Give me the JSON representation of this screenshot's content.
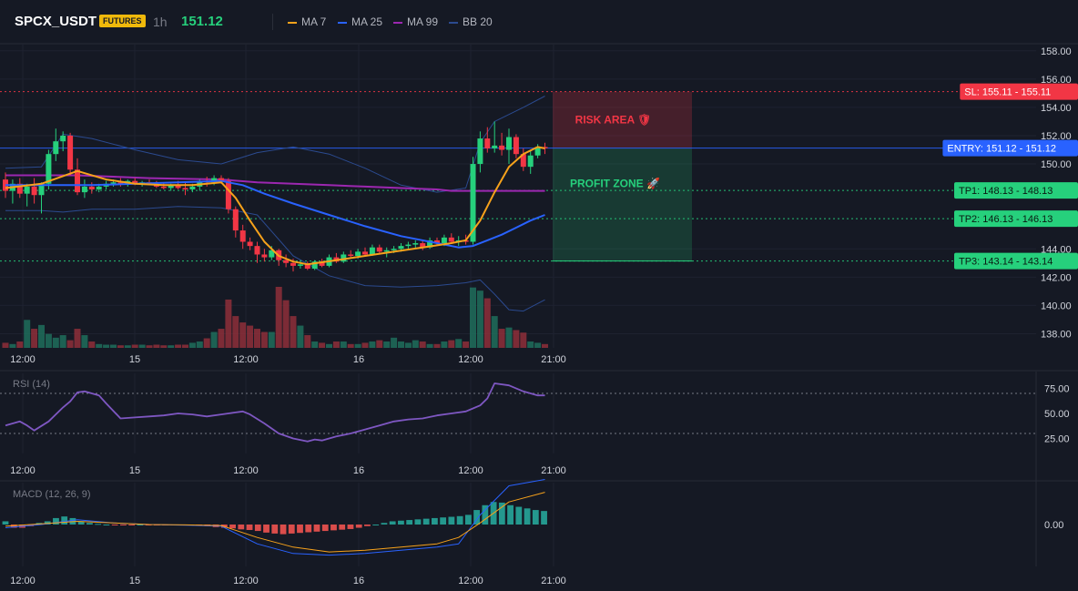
{
  "header": {
    "symbol": "SPCX_USDT",
    "badge": "FUTURES",
    "timeframe": "1h",
    "last_price": "151.12",
    "legend": [
      {
        "label": "MA 7",
        "color": "#f7a21b"
      },
      {
        "label": "MA 25",
        "color": "#2962ff"
      },
      {
        "label": "MA 99",
        "color": "#9c27b0"
      },
      {
        "label": "BB 20",
        "color": "#2b4a8f"
      }
    ]
  },
  "colors": {
    "up": "#26d07c",
    "down": "#f23645",
    "background": "#151924",
    "grid": "#1e2230"
  },
  "zones": {
    "risk_label": "RISK AREA 🛡",
    "profit_label": "PROFIT ZONE 🚀"
  },
  "chart_data": [
    {
      "type": "candlestick",
      "title": "",
      "x_ticks": [
        "12:00",
        "15",
        "12:00",
        "16",
        "12:00",
        "21:00"
      ],
      "y_ticks": [
        "138.00",
        "140.00",
        "142.00",
        "144.00",
        "150.00",
        "152.00",
        "154.00",
        "156.00",
        "158.00"
      ],
      "ylim": [
        137,
        158.5
      ],
      "candles": [
        {
          "o": 148.9,
          "h": 149.4,
          "l": 147.6,
          "c": 148.1
        },
        {
          "o": 148.1,
          "h": 148.9,
          "l": 147.2,
          "c": 148.6
        },
        {
          "o": 148.6,
          "h": 149.0,
          "l": 147.6,
          "c": 147.9
        },
        {
          "o": 147.9,
          "h": 148.6,
          "l": 147.0,
          "c": 148.4
        },
        {
          "o": 148.4,
          "h": 149.0,
          "l": 147.2,
          "c": 147.8
        },
        {
          "o": 147.8,
          "h": 148.7,
          "l": 146.5,
          "c": 148.6
        },
        {
          "o": 148.6,
          "h": 151.0,
          "l": 148.2,
          "c": 150.7
        },
        {
          "o": 150.7,
          "h": 152.5,
          "l": 150.2,
          "c": 151.6
        },
        {
          "o": 151.6,
          "h": 152.3,
          "l": 150.9,
          "c": 152.0
        },
        {
          "o": 152.0,
          "h": 152.2,
          "l": 149.2,
          "c": 149.6
        },
        {
          "o": 149.6,
          "h": 150.4,
          "l": 147.8,
          "c": 148.0
        },
        {
          "o": 148.0,
          "h": 148.9,
          "l": 147.6,
          "c": 148.4
        },
        {
          "o": 148.4,
          "h": 148.7,
          "l": 147.9,
          "c": 148.2
        },
        {
          "o": 148.2,
          "h": 148.6,
          "l": 148.0,
          "c": 148.4
        },
        {
          "o": 148.4,
          "h": 148.8,
          "l": 148.2,
          "c": 148.6
        },
        {
          "o": 148.6,
          "h": 148.9,
          "l": 148.4,
          "c": 148.7
        },
        {
          "o": 148.7,
          "h": 149.0,
          "l": 148.4,
          "c": 148.6
        },
        {
          "o": 148.6,
          "h": 148.9,
          "l": 148.4,
          "c": 148.8
        },
        {
          "o": 148.8,
          "h": 149.0,
          "l": 148.5,
          "c": 148.6
        },
        {
          "o": 148.6,
          "h": 148.8,
          "l": 148.4,
          "c": 148.7
        },
        {
          "o": 148.7,
          "h": 148.9,
          "l": 148.5,
          "c": 148.6
        },
        {
          "o": 148.6,
          "h": 148.8,
          "l": 148.3,
          "c": 148.4
        },
        {
          "o": 148.4,
          "h": 148.7,
          "l": 148.2,
          "c": 148.3
        },
        {
          "o": 148.3,
          "h": 148.6,
          "l": 148.1,
          "c": 148.5
        },
        {
          "o": 148.5,
          "h": 148.8,
          "l": 148.2,
          "c": 148.3
        },
        {
          "o": 148.3,
          "h": 148.7,
          "l": 147.8,
          "c": 148.2
        },
        {
          "o": 148.2,
          "h": 148.6,
          "l": 148.0,
          "c": 148.4
        },
        {
          "o": 148.4,
          "h": 148.9,
          "l": 148.1,
          "c": 148.8
        },
        {
          "o": 148.8,
          "h": 149.1,
          "l": 148.4,
          "c": 148.7
        },
        {
          "o": 148.7,
          "h": 149.2,
          "l": 148.5,
          "c": 149.0
        },
        {
          "o": 149.0,
          "h": 149.2,
          "l": 148.6,
          "c": 148.8
        },
        {
          "o": 148.8,
          "h": 149.0,
          "l": 146.5,
          "c": 146.8
        },
        {
          "o": 146.8,
          "h": 147.0,
          "l": 144.8,
          "c": 145.3
        },
        {
          "o": 145.3,
          "h": 145.7,
          "l": 144.0,
          "c": 144.5
        },
        {
          "o": 144.5,
          "h": 144.8,
          "l": 143.9,
          "c": 144.2
        },
        {
          "o": 144.2,
          "h": 144.5,
          "l": 143.0,
          "c": 143.6
        },
        {
          "o": 143.6,
          "h": 144.0,
          "l": 143.1,
          "c": 143.4
        },
        {
          "o": 143.4,
          "h": 144.2,
          "l": 143.2,
          "c": 143.9
        },
        {
          "o": 143.9,
          "h": 144.0,
          "l": 142.8,
          "c": 143.2
        },
        {
          "o": 143.2,
          "h": 143.6,
          "l": 142.7,
          "c": 143.0
        },
        {
          "o": 143.0,
          "h": 143.3,
          "l": 142.4,
          "c": 142.8
        },
        {
          "o": 142.8,
          "h": 143.2,
          "l": 142.6,
          "c": 142.9
        },
        {
          "o": 142.9,
          "h": 143.1,
          "l": 142.5,
          "c": 142.6
        },
        {
          "o": 142.6,
          "h": 143.2,
          "l": 142.5,
          "c": 143.1
        },
        {
          "o": 143.1,
          "h": 143.3,
          "l": 142.7,
          "c": 142.8
        },
        {
          "o": 142.8,
          "h": 143.6,
          "l": 142.7,
          "c": 143.4
        },
        {
          "o": 143.4,
          "h": 143.7,
          "l": 143.0,
          "c": 143.1
        },
        {
          "o": 143.1,
          "h": 143.8,
          "l": 143.0,
          "c": 143.6
        },
        {
          "o": 143.6,
          "h": 143.9,
          "l": 143.4,
          "c": 143.5
        },
        {
          "o": 143.5,
          "h": 144.0,
          "l": 143.3,
          "c": 143.8
        },
        {
          "o": 143.8,
          "h": 144.1,
          "l": 143.5,
          "c": 143.6
        },
        {
          "o": 143.6,
          "h": 144.3,
          "l": 143.5,
          "c": 144.1
        },
        {
          "o": 144.1,
          "h": 144.3,
          "l": 143.7,
          "c": 143.8
        },
        {
          "o": 143.8,
          "h": 144.1,
          "l": 143.4,
          "c": 143.9
        },
        {
          "o": 143.9,
          "h": 144.2,
          "l": 143.7,
          "c": 144.0
        },
        {
          "o": 144.0,
          "h": 144.4,
          "l": 143.8,
          "c": 144.2
        },
        {
          "o": 144.2,
          "h": 144.5,
          "l": 144.0,
          "c": 144.3
        },
        {
          "o": 144.3,
          "h": 144.6,
          "l": 144.0,
          "c": 144.4
        },
        {
          "o": 144.4,
          "h": 144.6,
          "l": 143.9,
          "c": 144.1
        },
        {
          "o": 144.1,
          "h": 144.8,
          "l": 144.0,
          "c": 144.6
        },
        {
          "o": 144.6,
          "h": 144.8,
          "l": 144.3,
          "c": 144.4
        },
        {
          "o": 144.4,
          "h": 145.0,
          "l": 144.2,
          "c": 144.8
        },
        {
          "o": 144.8,
          "h": 145.1,
          "l": 144.4,
          "c": 144.5
        },
        {
          "o": 144.5,
          "h": 144.9,
          "l": 144.2,
          "c": 144.6
        },
        {
          "o": 144.6,
          "h": 145.0,
          "l": 144.3,
          "c": 144.5
        },
        {
          "o": 144.5,
          "h": 150.5,
          "l": 144.3,
          "c": 150.0
        },
        {
          "o": 150.0,
          "h": 152.3,
          "l": 149.4,
          "c": 151.8
        },
        {
          "o": 151.8,
          "h": 152.6,
          "l": 150.8,
          "c": 151.1
        },
        {
          "o": 151.1,
          "h": 153.0,
          "l": 150.8,
          "c": 151.3
        },
        {
          "o": 151.3,
          "h": 152.2,
          "l": 150.6,
          "c": 151.0
        },
        {
          "o": 151.0,
          "h": 152.5,
          "l": 150.0,
          "c": 151.9
        },
        {
          "o": 151.9,
          "h": 152.1,
          "l": 150.4,
          "c": 150.7
        },
        {
          "o": 150.7,
          "h": 151.1,
          "l": 149.5,
          "c": 149.8
        },
        {
          "o": 149.8,
          "h": 151.0,
          "l": 149.3,
          "c": 150.6
        },
        {
          "o": 150.6,
          "h": 151.4,
          "l": 150.4,
          "c": 151.2
        },
        {
          "o": 151.2,
          "h": 151.5,
          "l": 150.7,
          "c": 151.12
        }
      ],
      "series": [
        {
          "name": "MA 7",
          "color": "#f7a21b",
          "x": [
            0,
            5,
            10,
            14,
            18,
            22,
            26,
            30,
            32,
            34,
            36,
            38,
            40,
            42,
            46,
            50,
            54,
            58,
            62,
            64,
            66,
            68,
            70,
            72,
            74,
            75
          ],
          "values": [
            148.3,
            148.6,
            149.5,
            148.9,
            148.6,
            148.5,
            148.5,
            148.7,
            147.6,
            146.0,
            144.5,
            143.5,
            143.1,
            142.9,
            143.2,
            143.5,
            143.8,
            144.1,
            144.4,
            144.6,
            146.0,
            148.0,
            149.8,
            150.7,
            151.2,
            151.1
          ]
        },
        {
          "name": "MA 25",
          "color": "#2962ff",
          "x": [
            0,
            6,
            12,
            18,
            24,
            30,
            33,
            36,
            40,
            45,
            50,
            55,
            60,
            63,
            65,
            67,
            69,
            71,
            73,
            75
          ],
          "values": [
            148.5,
            148.5,
            148.5,
            148.6,
            148.7,
            148.8,
            148.5,
            147.9,
            147.2,
            146.4,
            145.6,
            144.9,
            144.4,
            144.1,
            144.2,
            144.6,
            145.0,
            145.5,
            146.0,
            146.4
          ]
        },
        {
          "name": "MA 99",
          "color": "#9c27b0",
          "x": [
            0,
            10,
            20,
            30,
            35,
            40,
            45,
            50,
            55,
            60,
            62,
            65,
            70,
            75
          ],
          "values": [
            149.2,
            149.2,
            149.0,
            148.9,
            148.7,
            148.6,
            148.5,
            148.4,
            148.3,
            148.2,
            148.1,
            148.1,
            148.1,
            148.1
          ]
        },
        {
          "name": "BB 20 upper",
          "color": "#2b4a8f",
          "x": [
            0,
            5,
            8,
            12,
            18,
            24,
            30,
            35,
            40,
            45,
            50,
            55,
            60,
            64,
            66,
            68,
            70,
            72,
            75
          ],
          "values": [
            149.7,
            149.8,
            152.1,
            151.8,
            151.0,
            150.3,
            150.0,
            150.8,
            151.2,
            150.7,
            149.7,
            148.5,
            148.0,
            148.3,
            151.5,
            153.0,
            153.5,
            154.0,
            154.8
          ]
        },
        {
          "name": "BB 20 lower",
          "color": "#2b4a8f",
          "x": [
            0,
            5,
            8,
            12,
            18,
            24,
            30,
            35,
            40,
            45,
            50,
            55,
            60,
            64,
            66,
            68,
            70,
            72,
            75
          ],
          "values": [
            146.7,
            146.7,
            146.6,
            146.8,
            146.8,
            147.0,
            146.9,
            146.4,
            143.5,
            142.1,
            141.4,
            141.3,
            141.4,
            141.6,
            141.8,
            140.8,
            139.7,
            139.6,
            140.4
          ]
        }
      ],
      "volume": [
        8,
        6,
        10,
        44,
        30,
        36,
        22,
        16,
        20,
        12,
        30,
        20,
        10,
        6,
        5,
        5,
        4,
        4,
        5,
        5,
        4,
        5,
        4,
        4,
        5,
        5,
        8,
        10,
        15,
        25,
        30,
        76,
        50,
        40,
        35,
        30,
        25,
        25,
        96,
        75,
        50,
        35,
        20,
        10,
        8,
        6,
        10,
        10,
        6,
        6,
        8,
        10,
        12,
        10,
        16,
        10,
        8,
        12,
        10,
        6,
        6,
        10,
        12,
        14,
        10,
        95,
        90,
        78,
        50,
        30,
        32,
        28,
        24,
        10,
        8,
        6
      ],
      "levels": [
        {
          "label": "SL: 155.11",
          "value": "155.11",
          "price": 155.11,
          "color": "#f23645"
        },
        {
          "label": "ENTRY: 151.12",
          "value": "151.12",
          "price": 151.12,
          "color": "#2962ff"
        },
        {
          "label": "TP1: 148.13",
          "value": "148.13",
          "price": 148.13,
          "color": "#26d07c"
        },
        {
          "label": "TP2: 146.13",
          "value": "146.13",
          "price": 146.13,
          "color": "#26d07c"
        },
        {
          "label": "TP3: 143.14",
          "value": "143.14",
          "price": 143.14,
          "color": "#26d07c"
        }
      ]
    },
    {
      "type": "line",
      "title": "RSI (14)",
      "x_ticks": [
        "12:00",
        "15",
        "12:00",
        "16",
        "12:00",
        "21:00"
      ],
      "y_ticks": [
        "25.00",
        "50.00",
        "75.00"
      ],
      "ylim": [
        10,
        90
      ],
      "reference_lines": [
        70,
        30
      ],
      "series": [
        {
          "name": "RSI",
          "color": "#7e57c2",
          "x": [
            0,
            2,
            3,
            4,
            6,
            8,
            9,
            10,
            11,
            13,
            14,
            16,
            18,
            20,
            22,
            24,
            26,
            28,
            30,
            31,
            32,
            33,
            34,
            36,
            38,
            40,
            42,
            43,
            44,
            46,
            48,
            50,
            52,
            54,
            56,
            58,
            60,
            62,
            64,
            65,
            66,
            67,
            68,
            70,
            72,
            74,
            75
          ],
          "values": [
            38,
            42,
            38,
            33,
            42,
            56,
            62,
            71,
            72,
            68,
            60,
            45,
            46,
            47,
            48,
            50,
            49,
            47,
            49,
            50,
            51,
            52,
            49,
            40,
            30,
            25,
            22,
            24,
            23,
            27,
            30,
            34,
            38,
            42,
            44,
            45,
            48,
            50,
            52,
            55,
            58,
            65,
            80,
            78,
            72,
            68,
            68
          ]
        }
      ]
    },
    {
      "type": "bar",
      "title": "MACD (12, 26, 9)",
      "x_ticks": [
        "12:00",
        "15",
        "12:00",
        "16",
        "12:00",
        "21:00"
      ],
      "y_ticks": [
        "0.00"
      ],
      "ylim": [
        -1.3,
        1.3
      ],
      "histogram": [
        0.1,
        -0.1,
        -0.1,
        -0.05,
        0.05,
        0.1,
        0.2,
        0.25,
        0.2,
        0.1,
        0.05,
        0.02,
        0.0,
        -0.02,
        -0.02,
        -0.01,
        0.0,
        -0.01,
        -0.01,
        -0.02,
        -0.02,
        -0.01,
        0.0,
        -0.02,
        -0.05,
        -0.08,
        -0.1,
        -0.12,
        -0.15,
        -0.17,
        -0.2,
        -0.25,
        -0.28,
        -0.3,
        -0.28,
        -0.26,
        -0.24,
        -0.22,
        -0.2,
        -0.18,
        -0.16,
        -0.14,
        -0.1,
        -0.05,
        0.0,
        0.05,
        0.1,
        0.12,
        0.14,
        0.16,
        0.18,
        0.2,
        0.22,
        0.24,
        0.26,
        0.3,
        0.45,
        0.6,
        0.7,
        0.68,
        0.6,
        0.55,
        0.5,
        0.45,
        0.42
      ],
      "series": [
        {
          "name": "MACD",
          "color": "#2962ff",
          "x": [
            0,
            5,
            10,
            15,
            20,
            25,
            30,
            35,
            40,
            45,
            50,
            55,
            60,
            63,
            66,
            70,
            75
          ],
          "values": [
            -0.1,
            0.0,
            0.15,
            0.05,
            0.0,
            -0.02,
            -0.05,
            -0.6,
            -0.9,
            -0.95,
            -0.9,
            -0.8,
            -0.7,
            -0.6,
            0.3,
            1.2,
            1.4
          ]
        },
        {
          "name": "Signal",
          "color": "#f7a21b",
          "x": [
            0,
            5,
            10,
            15,
            20,
            25,
            30,
            35,
            40,
            45,
            50,
            55,
            60,
            63,
            66,
            70,
            75
          ],
          "values": [
            -0.05,
            0.02,
            0.1,
            0.05,
            0.0,
            -0.01,
            -0.03,
            -0.4,
            -0.7,
            -0.85,
            -0.8,
            -0.7,
            -0.6,
            -0.4,
            0.05,
            0.7,
            1.0
          ]
        }
      ]
    }
  ]
}
